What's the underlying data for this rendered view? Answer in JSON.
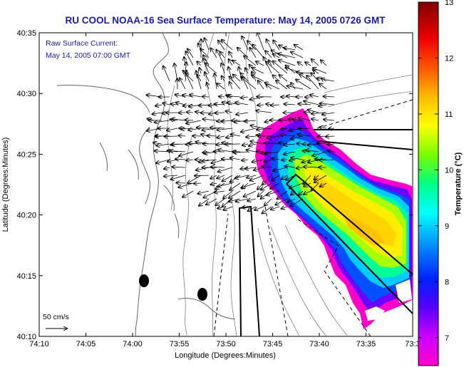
{
  "figure": {
    "title": "RU COOL  NOAA-16  Sea Surface Temperature:  May 14, 2005 0726 GMT",
    "current_label": "Raw Surface Current:",
    "current_time": "May 14, 2005 07:00 GMT",
    "scale_label": "50 cm/s",
    "xlabel": "Longitude (Degrees:Minutes)",
    "ylabel": "Latitude (Degrees:Minutes)",
    "colorbar_label": "Temperature (°C)"
  },
  "axes": {
    "x_ticks": [
      "74:10",
      "74:05",
      "74:00",
      "73:55",
      "73:50",
      "73:45",
      "73:40",
      "73:35",
      "73:3"
    ],
    "y_ticks": [
      "40:35",
      "40:30",
      "40:25",
      "40:20",
      "40:15",
      "40:10"
    ],
    "colorbar_ticks": [
      "13",
      "12",
      "11",
      "10",
      "9",
      "8",
      "7"
    ]
  },
  "colors": {
    "title": "#1a1aa8",
    "land_lines": "#808080",
    "colormap": [
      "#ff00cc",
      "#8800ff",
      "#2200ff",
      "#0088ff",
      "#00ffff",
      "#00ff66",
      "#aaff00",
      "#ffff00",
      "#ffaa00",
      "#ff4400",
      "#dd0000",
      "#880000"
    ]
  },
  "chart_data": {
    "type": "map",
    "xlim": [
      "74:10",
      "73:3"
    ],
    "ylim": [
      "40:10",
      "40:35"
    ],
    "colorbar_range": [
      6.5,
      13
    ],
    "sst_patch_range_c": [
      7,
      10.8
    ],
    "current_scale_cm_s": 50
  }
}
